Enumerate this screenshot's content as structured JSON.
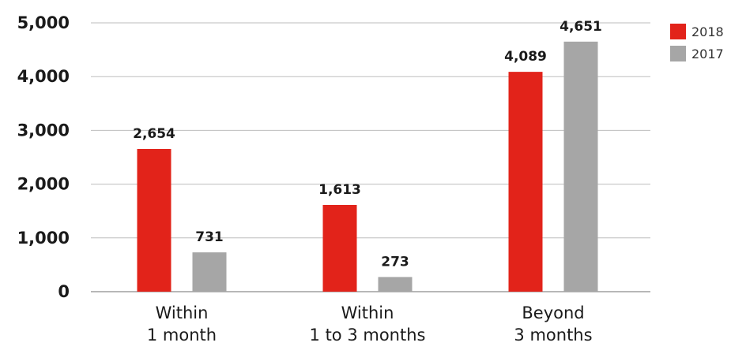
{
  "chart_data": {
    "type": "bar",
    "categories": [
      [
        "Within",
        "1 month"
      ],
      [
        "Within",
        "1 to 3 months"
      ],
      [
        "Beyond",
        "3 months"
      ]
    ],
    "series": [
      {
        "name": "2018",
        "color": "#e2231a",
        "values": [
          2654,
          1613,
          4089
        ],
        "labels": [
          "2,654",
          "1,613",
          "4,089"
        ]
      },
      {
        "name": "2017",
        "color": "#a6a6a6",
        "values": [
          731,
          273,
          4651
        ],
        "labels": [
          "731",
          "273",
          "4,651"
        ]
      }
    ],
    "yticks": [
      {
        "value": 0,
        "label": "0"
      },
      {
        "value": 1000,
        "label": "1,000"
      },
      {
        "value": 2000,
        "label": "2,000"
      },
      {
        "value": 3000,
        "label": "3,000"
      },
      {
        "value": 4000,
        "label": "4,000"
      },
      {
        "value": 5000,
        "label": "5,000"
      }
    ],
    "ylim": [
      0,
      5000
    ],
    "grid": true,
    "legend_position": "top-right"
  }
}
